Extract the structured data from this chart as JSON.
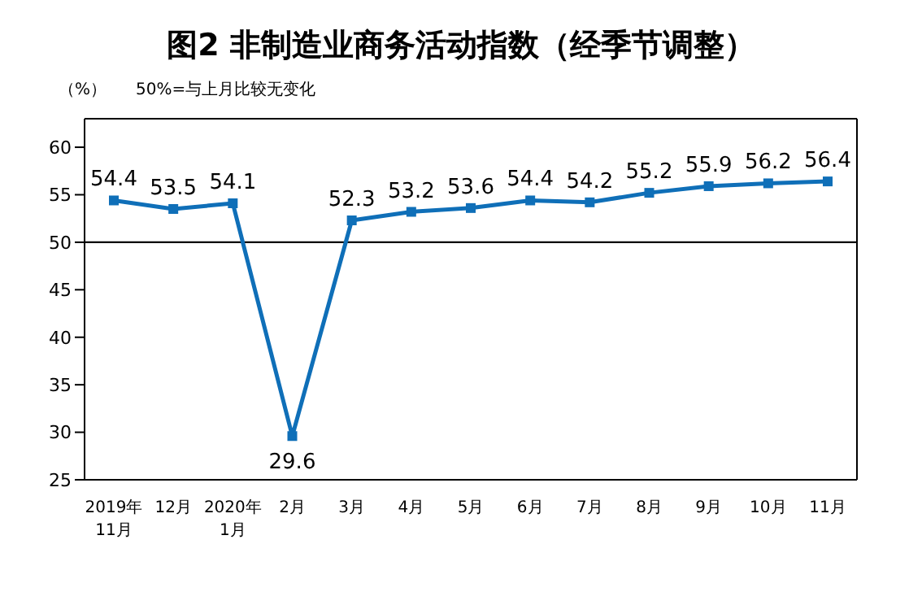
{
  "chart_data": {
    "type": "line",
    "title": "图2 非制造业商务活动指数（经季节调整）",
    "ylabel": "（%）",
    "annotations": [
      "50%=与上月比较无变化"
    ],
    "categories": [
      "2019年\n11月",
      "12月",
      "2020年\n1月",
      "2月",
      "3月",
      "4月",
      "5月",
      "6月",
      "7月",
      "8月",
      "9月",
      "10月",
      "11月"
    ],
    "series": [
      {
        "color": "#0f6fb8",
        "values": [
          54.4,
          53.5,
          54.1,
          29.6,
          52.3,
          53.2,
          53.6,
          54.4,
          54.2,
          55.2,
          55.9,
          56.2,
          56.4
        ]
      }
    ],
    "ylim": [
      25,
      63
    ],
    "yticks": [
      25,
      30,
      35,
      40,
      45,
      50,
      55,
      60
    ],
    "grid": false,
    "legend": false,
    "marker": "square",
    "line_style": "solid",
    "data_labels": true,
    "ref_lines": [
      {
        "axis": "y",
        "value": 50,
        "color": "#000000"
      }
    ]
  }
}
